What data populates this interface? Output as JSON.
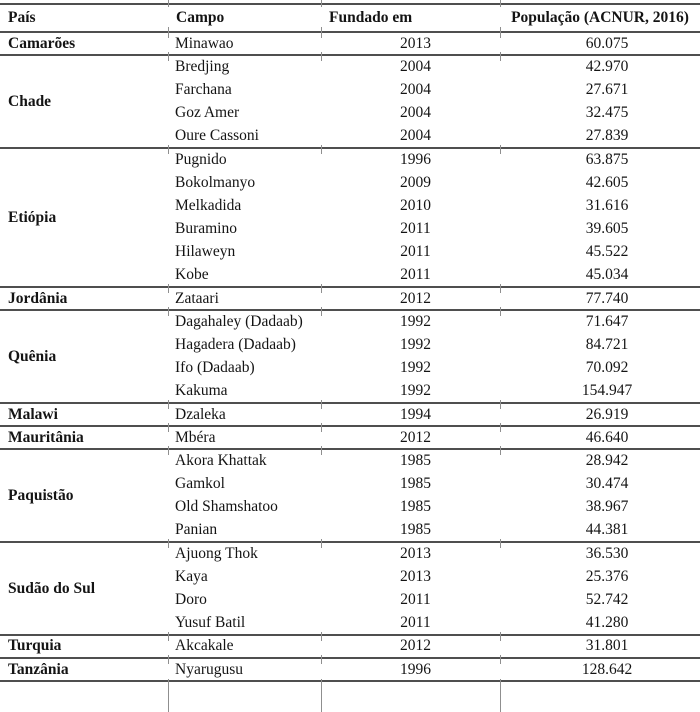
{
  "table": {
    "columns": [
      {
        "key": "pais",
        "label": "País"
      },
      {
        "key": "campo",
        "label": "Campo"
      },
      {
        "key": "fundado",
        "label": "Fundado em"
      },
      {
        "key": "populacao",
        "label": "População (ACNUR, 2016)"
      }
    ],
    "groups": [
      {
        "pais": "Camarões",
        "camps": [
          {
            "campo": "Minawao",
            "fundado": "2013",
            "populacao": "60.075"
          }
        ]
      },
      {
        "pais": "Chade",
        "camps": [
          {
            "campo": "Bredjing",
            "fundado": "2004",
            "populacao": "42.970"
          },
          {
            "campo": "Farchana",
            "fundado": "2004",
            "populacao": "27.671"
          },
          {
            "campo": "Goz Amer",
            "fundado": "2004",
            "populacao": "32.475"
          },
          {
            "campo": "Oure Cassoni",
            "fundado": "2004",
            "populacao": "27.839"
          }
        ]
      },
      {
        "pais": "Etiópia",
        "camps": [
          {
            "campo": "Pugnido",
            "fundado": "1996",
            "populacao": "63.875"
          },
          {
            "campo": "Bokolmanyo",
            "fundado": "2009",
            "populacao": "42.605"
          },
          {
            "campo": "Melkadida",
            "fundado": "2010",
            "populacao": "31.616"
          },
          {
            "campo": "Buramino",
            "fundado": "2011",
            "populacao": "39.605"
          },
          {
            "campo": "Hilaweyn",
            "fundado": "2011",
            "populacao": "45.522"
          },
          {
            "campo": "Kobe",
            "fundado": "2011",
            "populacao": "45.034"
          }
        ]
      },
      {
        "pais": "Jordânia",
        "camps": [
          {
            "campo": "Zataari",
            "fundado": "2012",
            "populacao": "77.740"
          }
        ]
      },
      {
        "pais": "Quênia",
        "camps": [
          {
            "campo": "Dagahaley (Dadaab)",
            "fundado": "1992",
            "populacao": "71.647"
          },
          {
            "campo": "Hagadera (Dadaab)",
            "fundado": "1992",
            "populacao": "84.721"
          },
          {
            "campo": "Ifo (Dadaab)",
            "fundado": "1992",
            "populacao": "70.092"
          },
          {
            "campo": "Kakuma",
            "fundado": "1992",
            "populacao": "154.947"
          }
        ]
      },
      {
        "pais": "Malawi",
        "camps": [
          {
            "campo": "Dzaleka",
            "fundado": "1994",
            "populacao": "26.919"
          }
        ]
      },
      {
        "pais": "Mauritânia",
        "camps": [
          {
            "campo": "Mbéra",
            "fundado": "2012",
            "populacao": "46.640"
          }
        ]
      },
      {
        "pais": "Paquistão",
        "camps": [
          {
            "campo": "Akora Khattak",
            "fundado": "1985",
            "populacao": "28.942"
          },
          {
            "campo": "Gamkol",
            "fundado": "1985",
            "populacao": "30.474"
          },
          {
            "campo": "Old Shamshatoo",
            "fundado": "1985",
            "populacao": "38.967"
          },
          {
            "campo": "Panian",
            "fundado": "1985",
            "populacao": "44.381"
          }
        ]
      },
      {
        "pais": "Sudão do Sul",
        "camps": [
          {
            "campo": "Ajuong Thok",
            "fundado": "2013",
            "populacao": "36.530"
          },
          {
            "campo": "Kaya",
            "fundado": "2013",
            "populacao": "25.376"
          },
          {
            "campo": "Doro",
            "fundado": "2011",
            "populacao": "52.742"
          },
          {
            "campo": "Yusuf Batil",
            "fundado": "2011",
            "populacao": "41.280"
          }
        ]
      },
      {
        "pais": "Turquia",
        "camps": [
          {
            "campo": "Akcakale",
            "fundado": "2012",
            "populacao": "31.801"
          }
        ]
      },
      {
        "pais": "Tanzânia",
        "camps": [
          {
            "campo": "Nyarugusu",
            "fundado": "1996",
            "populacao": "128.642"
          }
        ]
      }
    ]
  }
}
